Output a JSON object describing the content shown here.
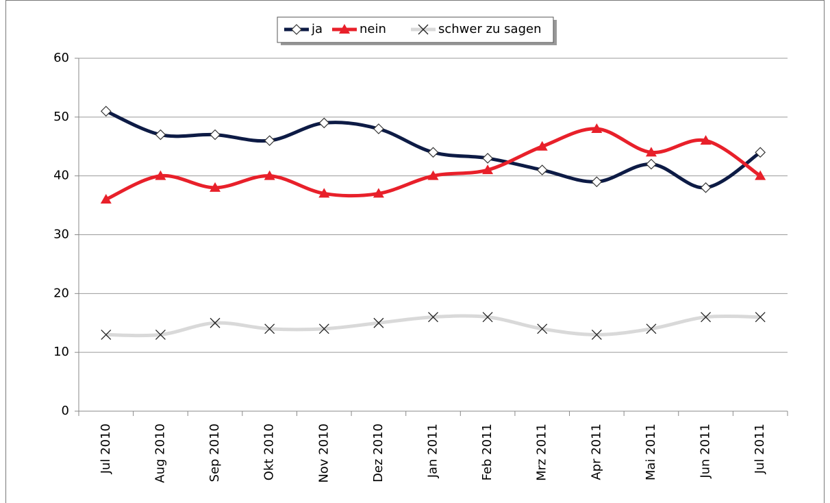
{
  "chart_data": {
    "type": "line",
    "categories": [
      "Jul 2010",
      "Aug 2010",
      "Sep 2010",
      "Okt 2010",
      "Nov 2010",
      "Dez 2010",
      "Jan 2011",
      "Feb 2011",
      "Mrz 2011",
      "Apr 2011",
      "Mai 2011",
      "Jun 2011",
      "Jul 2011"
    ],
    "series": [
      {
        "name": "ja",
        "color": "#0d1b45",
        "marker": "diamond",
        "values": [
          51,
          47,
          47,
          46,
          49,
          48,
          44,
          43,
          41,
          39,
          42,
          38,
          44
        ]
      },
      {
        "name": "nein",
        "color": "#e8202a",
        "marker": "triangle",
        "values": [
          36,
          40,
          38,
          40,
          37,
          37,
          40,
          41,
          45,
          48,
          44,
          46,
          40
        ]
      },
      {
        "name": "schwer zu sagen",
        "color": "#d9d9d9",
        "marker": "x",
        "values": [
          13,
          13,
          15,
          14,
          14,
          15,
          16,
          16,
          14,
          13,
          14,
          16,
          16
        ]
      }
    ],
    "ylim": [
      0,
      60
    ],
    "yticks": [
      0,
      10,
      20,
      30,
      40,
      50,
      60
    ],
    "grid": true,
    "legend": "top",
    "smooth": true
  }
}
